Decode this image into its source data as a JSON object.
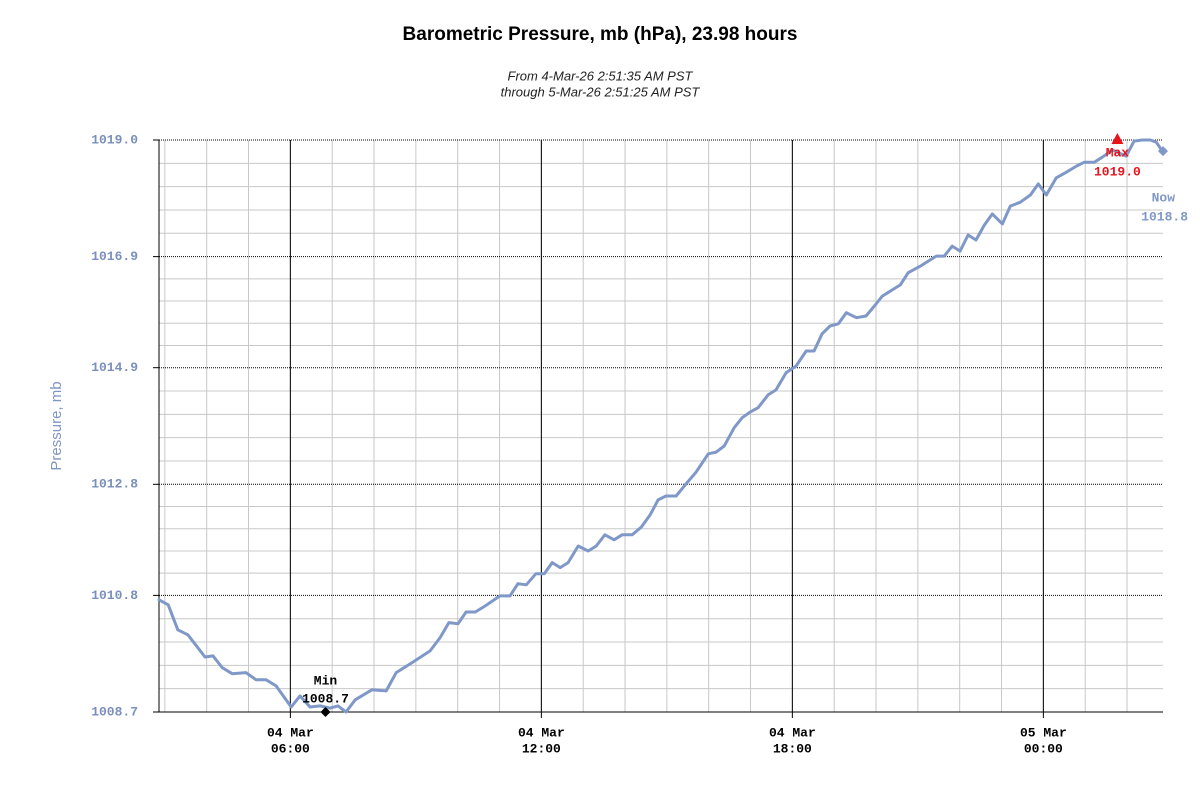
{
  "chart_data": {
    "type": "line",
    "title": "Barometric Pressure, mb (hPa), 23.98 hours",
    "subtitle": [
      "From 4-Mar-26 2:51:35 AM PST",
      "through 5-Mar-26 2:51:25 AM PST"
    ],
    "ylabel": "Pressure, mb",
    "xlim": [
      2.86,
      26.86
    ],
    "ylim": [
      1008.7,
      1019.0
    ],
    "yticks": [
      1008.7,
      1010.8,
      1012.8,
      1014.9,
      1016.9,
      {
        "value": 1019.0,
        "label": "1019.0"
      }
    ],
    "xticks": [
      {
        "value": 6,
        "label": [
          "04 Mar",
          "06:00"
        ]
      },
      {
        "value": 12,
        "label": [
          "04 Mar",
          "12:00"
        ]
      },
      {
        "value": 18,
        "label": [
          "04 Mar",
          "18:00"
        ]
      },
      {
        "value": 24,
        "label": [
          "05 Mar",
          "00:00"
        ]
      }
    ],
    "grid": true,
    "y_minor_divisions": 5,
    "x_minor_step": 1,
    "x": [
      2.86,
      3.08,
      3.31,
      3.55,
      3.96,
      4.15,
      4.37,
      4.61,
      4.94,
      5.18,
      5.42,
      5.66,
      6.02,
      6.23,
      6.47,
      6.71,
      6.95,
      7.14,
      7.33,
      7.55,
      7.95,
      8.29,
      8.53,
      8.91,
      9.34,
      9.58,
      9.79,
      10.01,
      10.2,
      10.42,
      10.66,
      11.01,
      11.25,
      11.44,
      11.64,
      11.87,
      12.07,
      12.26,
      12.45,
      12.64,
      12.88,
      13.12,
      13.31,
      13.52,
      13.74,
      13.93,
      14.17,
      14.39,
      14.6,
      14.79,
      14.98,
      15.22,
      15.46,
      15.7,
      15.99,
      16.18,
      16.37,
      16.61,
      16.8,
      16.99,
      17.18,
      17.42,
      17.61,
      17.85,
      18.09,
      18.33,
      18.52,
      18.71,
      18.9,
      19.1,
      19.29,
      19.53,
      19.76,
      19.96,
      20.15,
      20.39,
      20.58,
      20.77,
      21.06,
      21.25,
      21.44,
      21.63,
      21.82,
      22.01,
      22.2,
      22.39,
      22.59,
      22.78,
      23.02,
      23.21,
      23.45,
      23.69,
      23.88,
      24.07,
      24.31,
      24.55,
      24.79,
      24.98,
      25.22,
      25.41,
      25.65,
      25.98,
      26.17,
      26.36,
      26.56,
      26.7,
      26.86
    ],
    "series": [
      {
        "name": "Pressure",
        "color": "#7f98c8",
        "values": [
          1010.72,
          1010.63,
          1010.18,
          1010.09,
          1009.69,
          1009.71,
          1009.5,
          1009.39,
          1009.41,
          1009.28,
          1009.28,
          1009.17,
          1008.79,
          1008.99,
          1008.79,
          1008.81,
          1008.77,
          1008.81,
          1008.7,
          1008.92,
          1009.1,
          1009.08,
          1009.41,
          1009.59,
          1009.8,
          1010.04,
          1010.31,
          1010.29,
          1010.5,
          1010.5,
          1010.61,
          1010.79,
          1010.79,
          1011.01,
          1010.99,
          1011.19,
          1011.19,
          1011.39,
          1011.3,
          1011.39,
          1011.69,
          1011.6,
          1011.69,
          1011.89,
          1011.8,
          1011.89,
          1011.89,
          1012.03,
          1012.25,
          1012.52,
          1012.59,
          1012.59,
          1012.81,
          1013.02,
          1013.35,
          1013.38,
          1013.49,
          1013.82,
          1014.0,
          1014.1,
          1014.18,
          1014.41,
          1014.5,
          1014.81,
          1014.93,
          1015.2,
          1015.2,
          1015.51,
          1015.65,
          1015.69,
          1015.89,
          1015.8,
          1015.83,
          1016.01,
          1016.19,
          1016.3,
          1016.39,
          1016.61,
          1016.73,
          1016.82,
          1016.91,
          1016.91,
          1017.09,
          1017.0,
          1017.29,
          1017.2,
          1017.47,
          1017.67,
          1017.49,
          1017.81,
          1017.88,
          1018.01,
          1018.21,
          1018.01,
          1018.32,
          1018.42,
          1018.53,
          1018.6,
          1018.6,
          1018.69,
          1018.82,
          1018.71,
          1018.98,
          1019.0,
          1019.0,
          1018.96,
          1018.78
        ]
      }
    ],
    "annotations": [
      {
        "text": "Min",
        "x": 6.84,
        "value": 1008.7,
        "color": "#000000",
        "marker": "diamond"
      },
      {
        "text": "Max",
        "x": 25.77,
        "value": 1019.0,
        "value_label": "1019.0",
        "color": "#e8141c",
        "marker": "triangle"
      },
      {
        "text": "Now",
        "x": 26.86,
        "value": 1018.8,
        "color": "#7f98c8",
        "marker": "diamond"
      }
    ]
  }
}
